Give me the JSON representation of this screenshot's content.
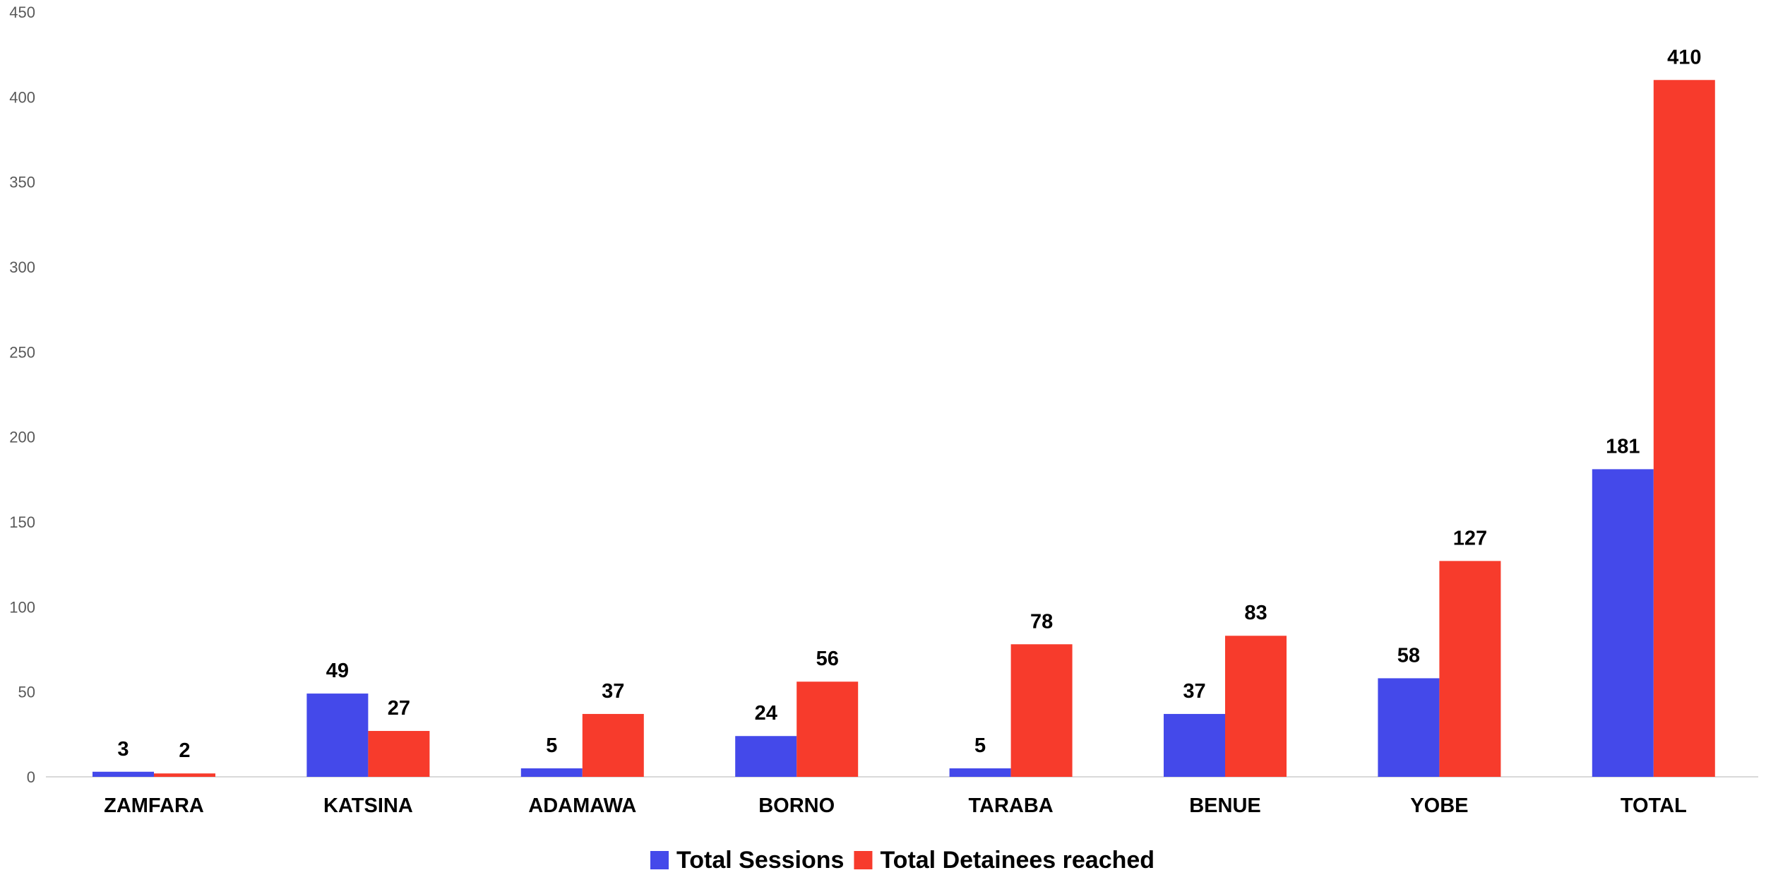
{
  "chart_data": {
    "type": "bar",
    "categories": [
      "ZAMFARA",
      "KATSINA",
      "ADAMAWA",
      "BORNO",
      "TARABA",
      "BENUE",
      "YOBE",
      "TOTAL"
    ],
    "series": [
      {
        "name": "Total Sessions",
        "color": "#4449ea",
        "values": [
          3,
          49,
          5,
          24,
          5,
          37,
          58,
          181
        ]
      },
      {
        "name": "Total Detainees reached",
        "color": "#f73b2c",
        "values": [
          2,
          27,
          37,
          56,
          78,
          83,
          127,
          410
        ]
      }
    ],
    "title": "",
    "xlabel": "",
    "ylabel": "",
    "ylim": [
      0,
      450
    ],
    "yticks": [
      0,
      50,
      100,
      150,
      200,
      250,
      300,
      350,
      400,
      450
    ],
    "grid": false,
    "legend_position": "bottom",
    "data_labels": true
  }
}
